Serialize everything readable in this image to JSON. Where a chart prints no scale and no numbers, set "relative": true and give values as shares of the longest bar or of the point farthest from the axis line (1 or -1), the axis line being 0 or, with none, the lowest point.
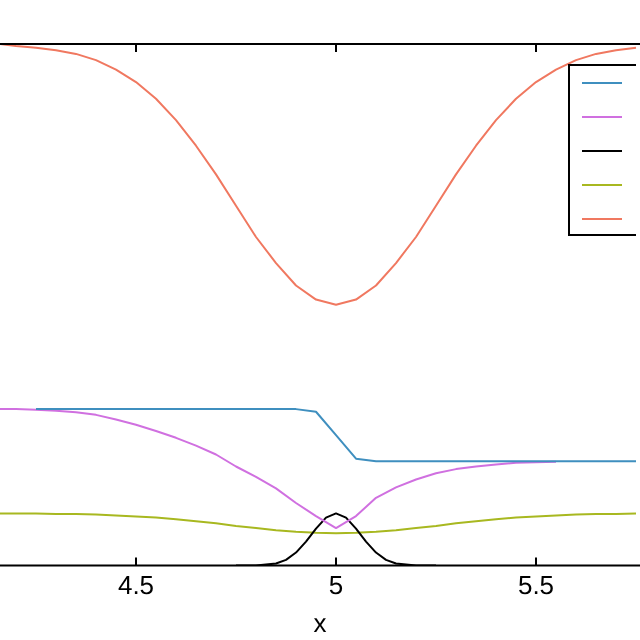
{
  "chart_data": {
    "type": "line",
    "xlabel": "x",
    "relative": true,
    "grid": false,
    "marker": "none",
    "line_style": "solid",
    "xlim": [
      4.16,
      5.76
    ],
    "xticks": [
      4.5,
      5,
      5.5
    ],
    "x": [
      4.16,
      4.2,
      4.25,
      4.3,
      4.35,
      4.4,
      4.45,
      4.5,
      4.55,
      4.6,
      4.65,
      4.7,
      4.75,
      4.8,
      4.85,
      4.9,
      4.95,
      5.0,
      5.05,
      5.1,
      5.15,
      5.2,
      5.25,
      5.3,
      5.35,
      5.4,
      5.45,
      5.5,
      5.55,
      5.6,
      5.65,
      5.7,
      5.75
    ],
    "series": [
      {
        "color": "#3f8fbf",
        "values": [
          null,
          null,
          0.3,
          0.3,
          0.3,
          0.3,
          0.3,
          0.3,
          0.3,
          0.3,
          0.3,
          0.3,
          0.3,
          0.3,
          0.3,
          0.3,
          0.295,
          0.25,
          0.205,
          0.2,
          0.2,
          0.2,
          0.2,
          0.2,
          0.2,
          0.2,
          0.2,
          0.2,
          0.2,
          0.2,
          0.2,
          0.2,
          0.2
        ]
      },
      {
        "color": "#d070e0",
        "values": [
          0.3,
          0.3,
          0.299,
          0.297,
          0.294,
          0.289,
          0.28,
          0.27,
          0.258,
          0.245,
          0.23,
          0.213,
          0.19,
          0.17,
          0.148,
          0.12,
          0.095,
          0.072,
          0.095,
          0.13,
          0.15,
          0.165,
          0.177,
          0.185,
          0.19,
          0.194,
          0.197,
          0.198,
          0.199,
          null,
          null,
          null,
          null
        ]
      },
      {
        "color": "#000000",
        "x": [
          4.75,
          4.8,
          4.85,
          4.875,
          4.9,
          4.925,
          4.95,
          4.975,
          5.0,
          5.025,
          5.05,
          5.075,
          5.1,
          5.125,
          5.15,
          5.2,
          5.25
        ],
        "values": [
          0,
          0,
          0.004,
          0.011,
          0.025,
          0.046,
          0.071,
          0.092,
          0.1,
          0.092,
          0.071,
          0.046,
          0.025,
          0.011,
          0.004,
          0,
          0
        ]
      },
      {
        "color": "#a8b820",
        "values": [
          0.1,
          0.1,
          0.1,
          0.099,
          0.099,
          0.098,
          0.096,
          0.094,
          0.092,
          0.089,
          0.085,
          0.081,
          0.076,
          0.072,
          0.068,
          0.065,
          0.063,
          0.062,
          0.063,
          0.065,
          0.068,
          0.072,
          0.076,
          0.081,
          0.085,
          0.089,
          0.092,
          0.094,
          0.096,
          0.098,
          0.099,
          0.099,
          0.1
        ]
      },
      {
        "color": "#f07860",
        "values": [
          1,
          0.996,
          0.993,
          0.988,
          0.981,
          0.969,
          0.951,
          0.927,
          0.895,
          0.854,
          0.805,
          0.75,
          0.69,
          0.63,
          0.58,
          0.537,
          0.51,
          0.5,
          0.51,
          0.537,
          0.58,
          0.63,
          0.69,
          0.75,
          0.805,
          0.854,
          0.895,
          0.927,
          0.951,
          0.969,
          0.981,
          0.988,
          0.993
        ]
      }
    ]
  }
}
